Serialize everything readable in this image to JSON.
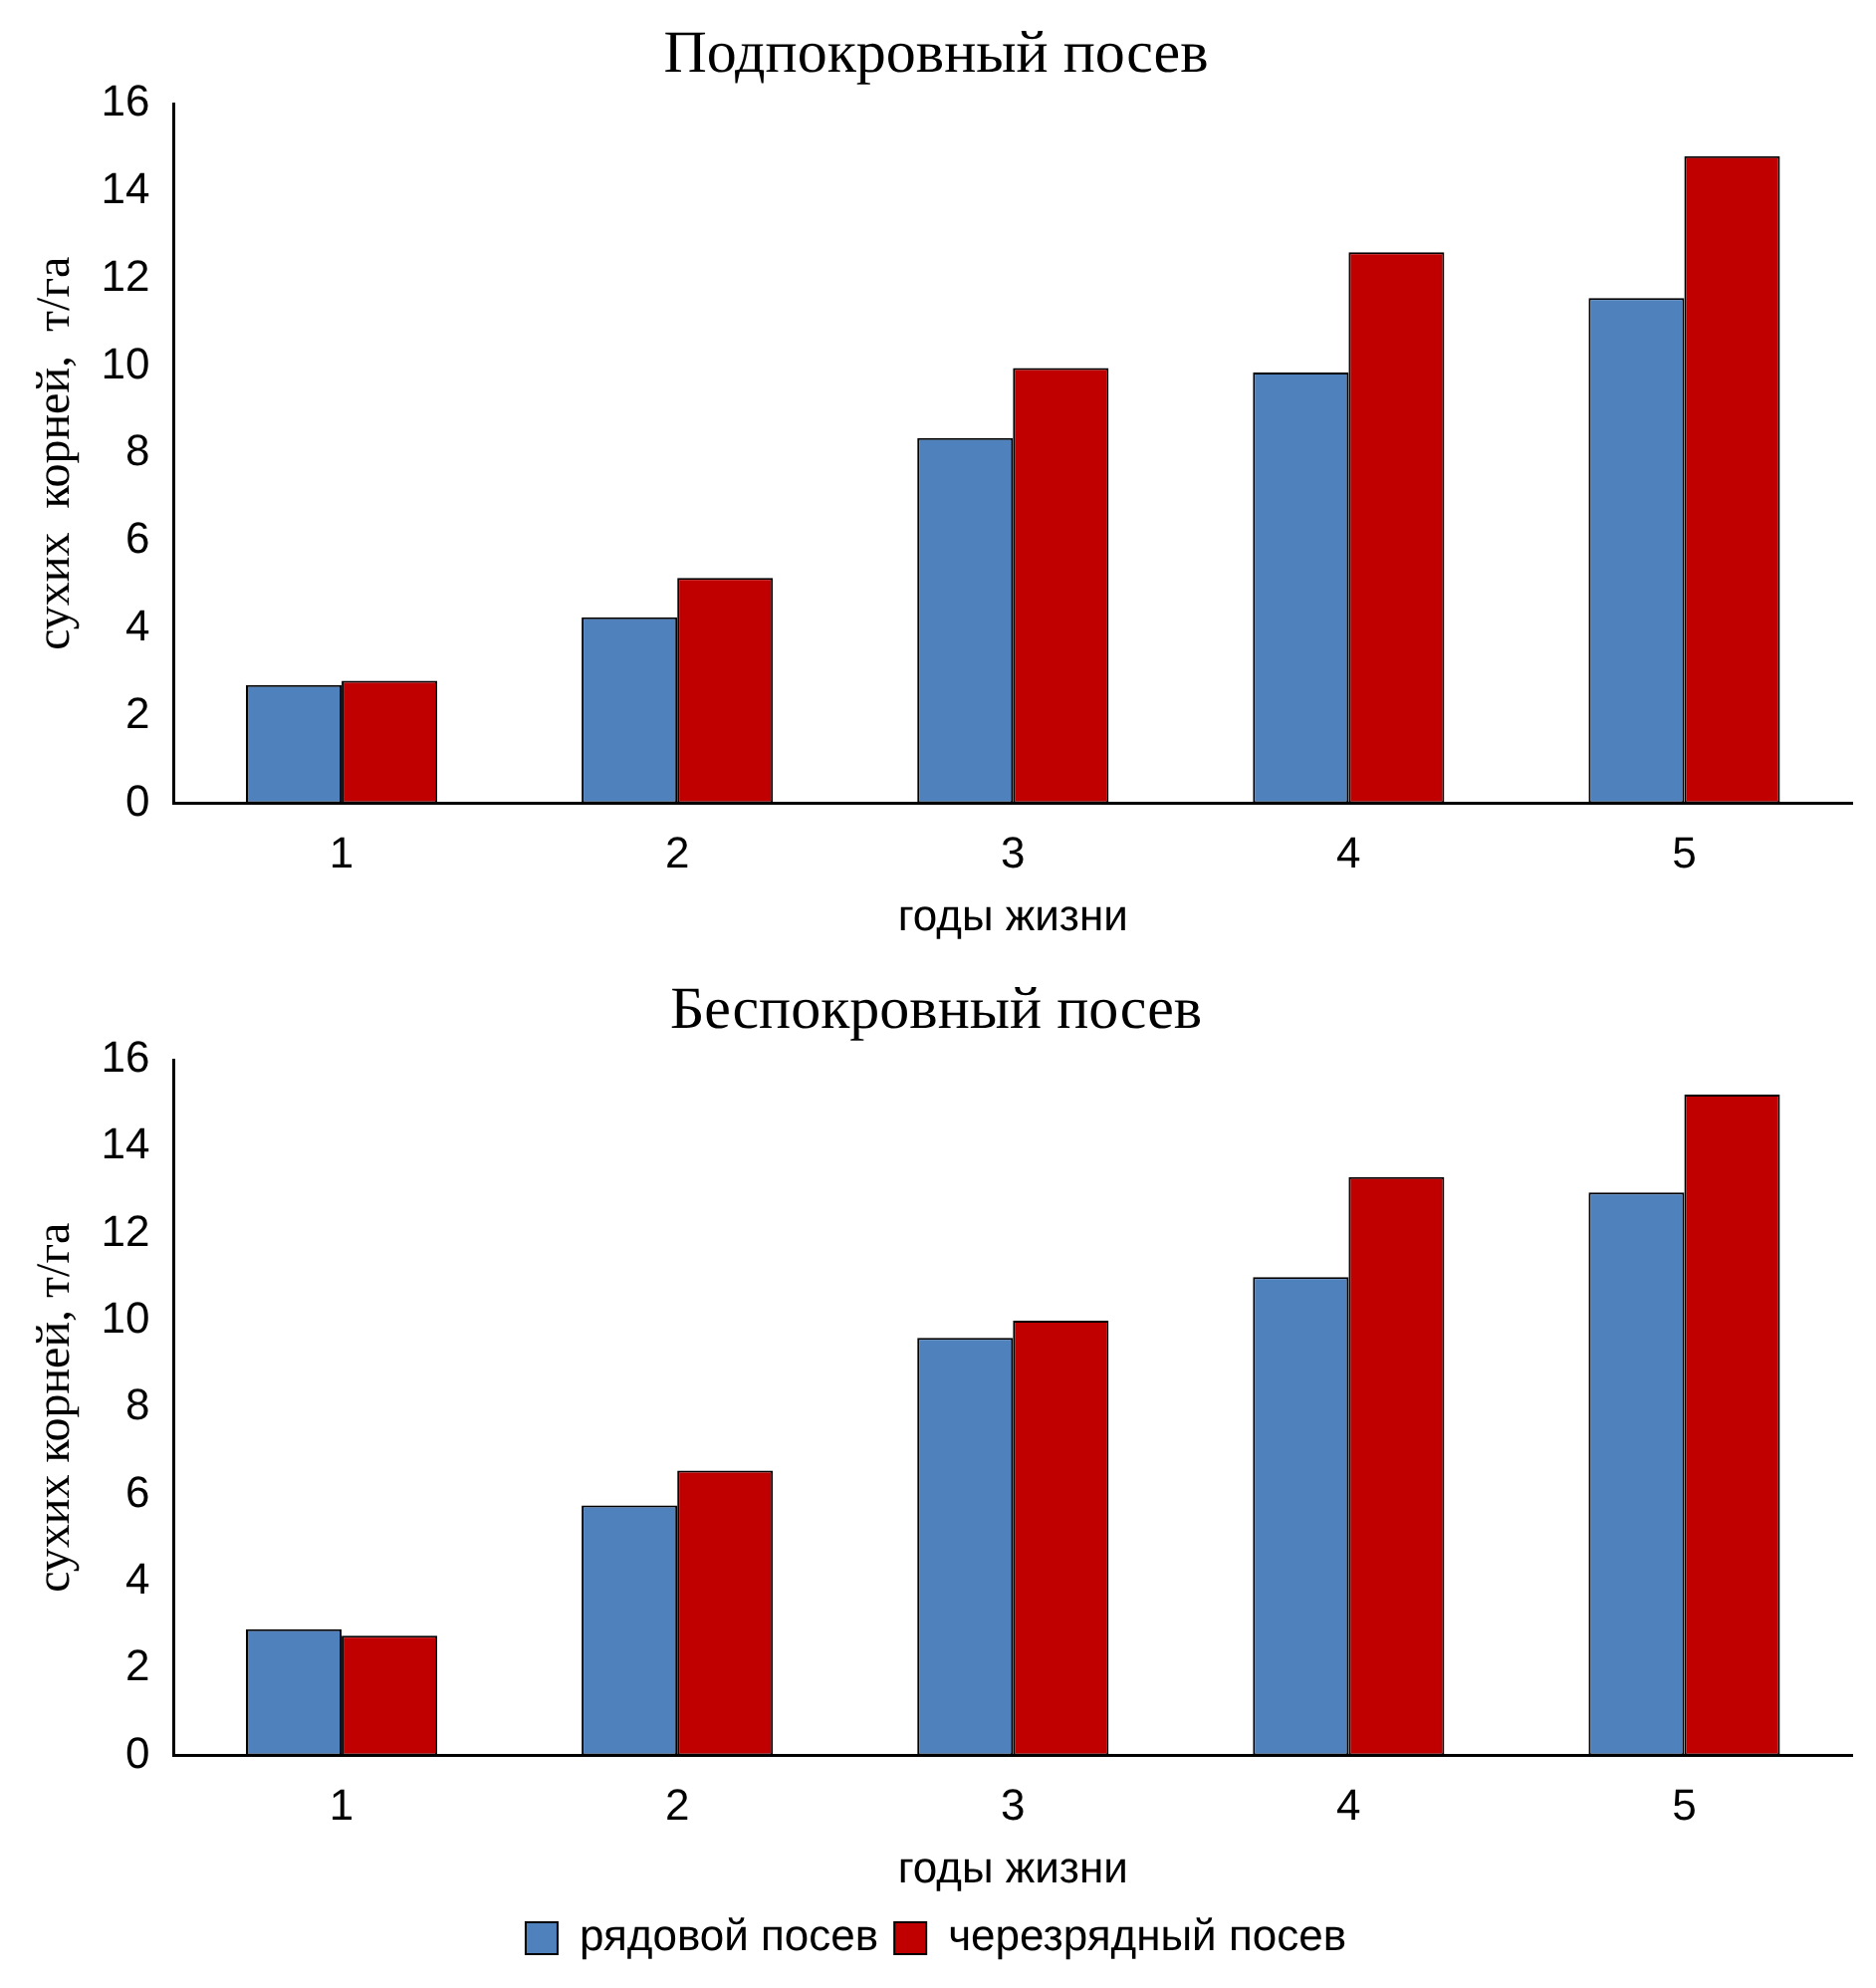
{
  "chart_data": [
    {
      "type": "bar",
      "title": "Подпокровный посев",
      "xlabel": "годы жизни",
      "ylabel": "сухих  корней,  т/га",
      "categories": [
        "1",
        "2",
        "3",
        "4",
        "5"
      ],
      "series": [
        {
          "color": "#4f81bd",
          "values": [
            2.7,
            4.25,
            8.35,
            9.85,
            11.55
          ]
        },
        {
          "color": "#c00000",
          "values": [
            2.8,
            5.15,
            9.95,
            12.6,
            14.8
          ]
        }
      ],
      "ylim": [
        0,
        16
      ],
      "yticks": [
        0,
        2,
        4,
        6,
        8,
        10,
        12,
        14,
        16
      ],
      "grid": false,
      "legend": false
    },
    {
      "type": "bar",
      "title": "Беспокровный посев",
      "xlabel": "годы жизни",
      "ylabel": "сухих корней, т/га",
      "categories": [
        "1",
        "2",
        "3",
        "4",
        "5"
      ],
      "series": [
        {
          "name": "рядовой посев",
          "color": "#4f81bd",
          "values": [
            2.9,
            5.75,
            9.6,
            11.0,
            12.95
          ]
        },
        {
          "name": "черезрядный посев",
          "color": "#c00000",
          "values": [
            2.75,
            6.55,
            10.0,
            13.3,
            15.2
          ]
        }
      ],
      "ylim": [
        0,
        16
      ],
      "yticks": [
        0,
        2,
        4,
        6,
        8,
        10,
        12,
        14,
        16
      ],
      "grid": false,
      "legend": "bottom"
    }
  ]
}
